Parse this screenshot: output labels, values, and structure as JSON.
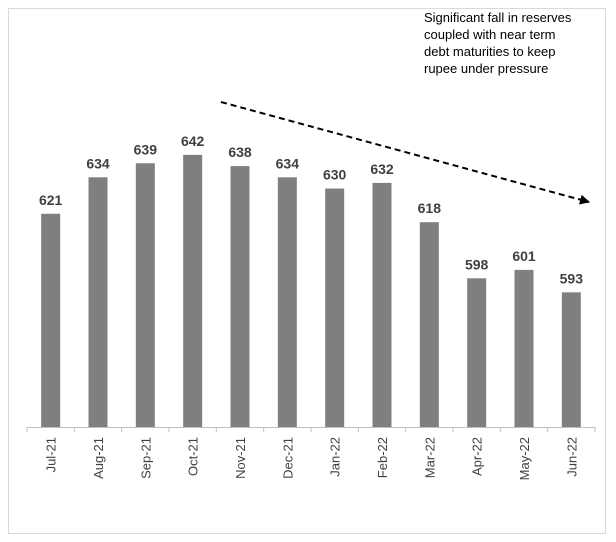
{
  "chart_data": {
    "type": "bar",
    "categories": [
      "Jul-21",
      "Aug-21",
      "Sep-21",
      "Oct-21",
      "Nov-21",
      "Dec-21",
      "Jan-22",
      "Feb-22",
      "Mar-22",
      "Apr-22",
      "May-22",
      "Jun-22"
    ],
    "values": [
      621,
      634,
      639,
      642,
      638,
      634,
      630,
      632,
      618,
      598,
      601,
      593
    ],
    "title": "",
    "xlabel": "",
    "ylabel": "",
    "ylim": [
      545,
      653
    ],
    "grid": false,
    "legend": "none",
    "annotation": {
      "lines": [
        "Significant fall in reserves",
        "coupled with near term",
        "debt maturities to keep",
        "rupee under pressure"
      ],
      "arrow": "dashed, pointing down-right"
    },
    "colors": {
      "bar": "#7f7f7f",
      "text": "#404040",
      "axis": "#bfbfbf",
      "arrow": "#000000"
    }
  }
}
